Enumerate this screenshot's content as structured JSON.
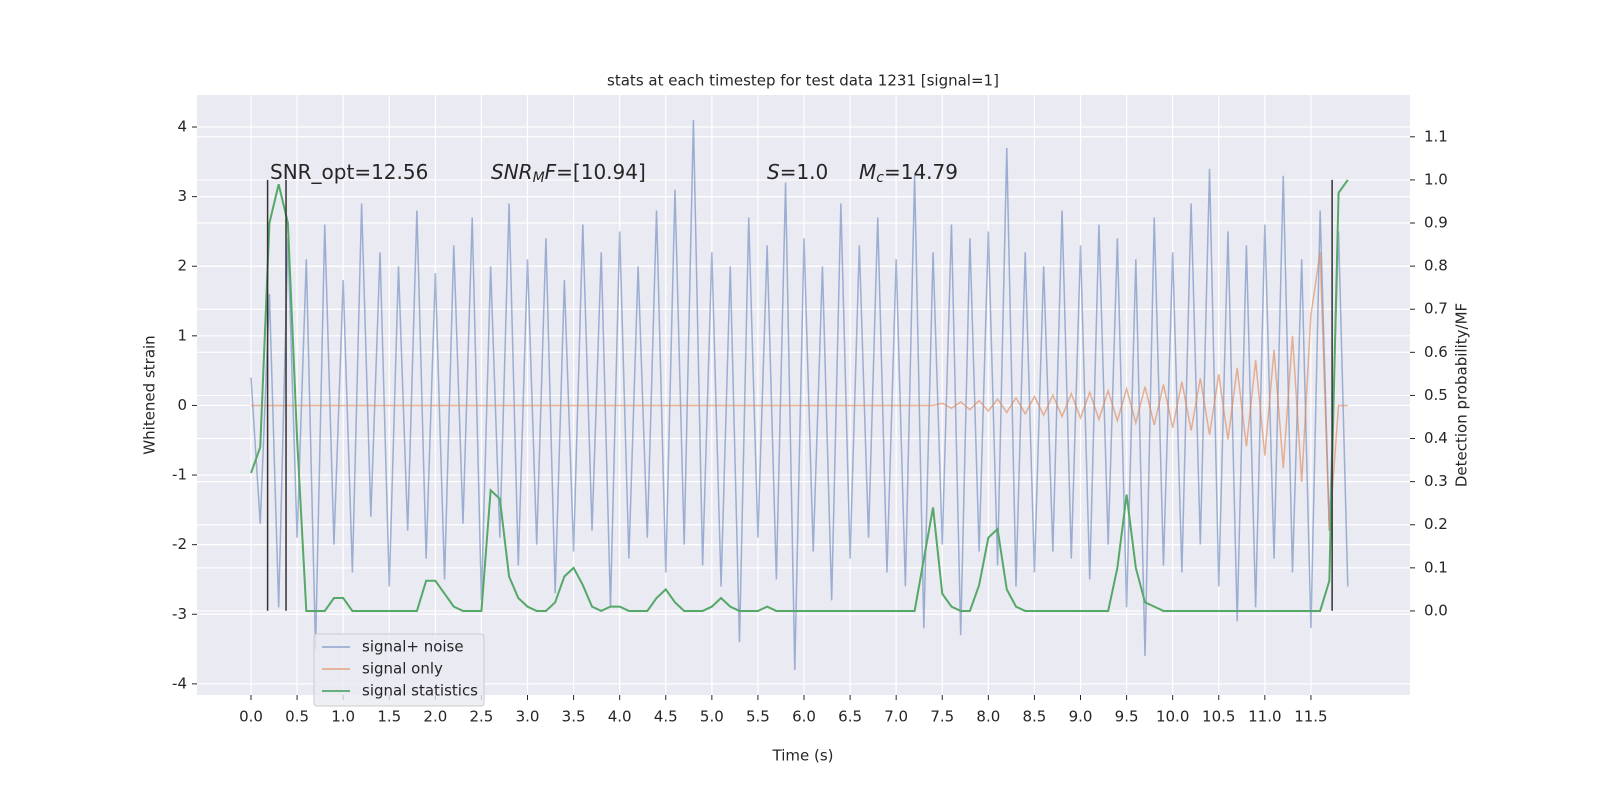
{
  "chart_data": {
    "type": "line",
    "title": "stats at each timestep for test data 1231 [signal=1]",
    "x_label": "Time (s)",
    "y_label": "Whitened strain",
    "y2_label": "Detection probability/MF",
    "x": [
      0,
      0.1,
      0.2,
      0.3,
      0.4,
      0.5,
      0.6,
      0.7,
      0.8,
      0.9,
      1,
      1.1,
      1.2,
      1.3,
      1.4,
      1.5,
      1.6,
      1.7,
      1.8,
      1.9,
      2,
      2.1,
      2.2,
      2.3,
      2.4,
      2.5,
      2.6,
      2.7,
      2.8,
      2.9,
      3,
      3.1,
      3.2,
      3.3,
      3.4,
      3.5,
      3.6,
      3.7,
      3.8,
      3.9,
      4,
      4.1,
      4.2,
      4.3,
      4.4,
      4.5,
      4.6,
      4.7,
      4.8,
      4.9,
      5,
      5.1,
      5.2,
      5.3,
      5.4,
      5.5,
      5.6,
      5.7,
      5.8,
      5.9,
      6,
      6.1,
      6.2,
      6.3,
      6.4,
      6.5,
      6.6,
      6.7,
      6.8,
      6.9,
      7,
      7.1,
      7.2,
      7.3,
      7.4,
      7.5,
      7.6,
      7.7,
      7.8,
      7.9,
      8,
      8.1,
      8.2,
      8.3,
      8.4,
      8.5,
      8.6,
      8.7,
      8.8,
      8.9,
      9,
      9.1,
      9.2,
      9.3,
      9.4,
      9.5,
      9.6,
      9.7,
      9.8,
      9.9,
      10,
      10.1,
      10.2,
      10.3,
      10.4,
      10.5,
      10.6,
      10.7,
      10.8,
      10.9,
      11,
      11.1,
      11.2,
      11.3,
      11.4,
      11.5,
      11.6,
      11.7,
      11.8,
      11.9
    ],
    "series": [
      {
        "name": "signal+ noise",
        "color": "#4c72b0",
        "alpha": 0.5,
        "values": [
          0.4,
          -1.7,
          1.6,
          -2.9,
          2.4,
          -1.9,
          2.1,
          -3.5,
          2.6,
          -2.0,
          1.8,
          -2.4,
          2.9,
          -1.6,
          2.2,
          -2.6,
          2.0,
          -1.8,
          2.8,
          -2.2,
          1.9,
          -2.5,
          2.3,
          -1.7,
          2.7,
          -2.8,
          2.0,
          -1.9,
          2.9,
          -2.3,
          2.1,
          -2.0,
          2.4,
          -2.7,
          1.8,
          -2.1,
          2.6,
          -1.8,
          2.2,
          -2.9,
          2.5,
          -2.2,
          2.0,
          -1.9,
          2.8,
          -2.4,
          3.1,
          -2.0,
          4.1,
          -2.3,
          2.2,
          -2.6,
          2.0,
          -3.4,
          2.7,
          -1.9,
          2.3,
          -2.5,
          3.2,
          -3.8,
          2.4,
          -2.1,
          2.0,
          -2.8,
          2.9,
          -2.2,
          2.3,
          -1.9,
          2.7,
          -2.4,
          2.1,
          -2.6,
          3.3,
          -3.2,
          2.2,
          -2.0,
          2.6,
          -3.3,
          2.4,
          -2.1,
          2.5,
          -2.3,
          3.7,
          -2.6,
          2.2,
          -2.4,
          2.0,
          -2.1,
          2.8,
          -2.2,
          2.3,
          -2.5,
          2.6,
          -2.0,
          2.4,
          -2.9,
          2.1,
          -3.6,
          2.7,
          -2.3,
          2.2,
          -2.4,
          2.9,
          -2.0,
          3.4,
          -2.6,
          2.5,
          -3.1,
          2.3,
          -2.9,
          2.6,
          -2.2,
          3.3,
          -2.4,
          2.1,
          -3.2,
          2.8,
          -1.8,
          2.5,
          -2.6
        ]
      },
      {
        "name": "signal only",
        "color": "#dd8452",
        "alpha": 0.6,
        "values": [
          0,
          0,
          0,
          0,
          0,
          0,
          0,
          0,
          0,
          0,
          0,
          0,
          0,
          0,
          0,
          0,
          0,
          0,
          0,
          0,
          0,
          0,
          0,
          0,
          0,
          0,
          0,
          0,
          0,
          0,
          0,
          0,
          0,
          0,
          0,
          0,
          0,
          0,
          0,
          0,
          0,
          0,
          0,
          0,
          0,
          0,
          0,
          0,
          0,
          0,
          0,
          0,
          0,
          0,
          0,
          0,
          0,
          0,
          0,
          0,
          0,
          0,
          0,
          0,
          0,
          0,
          0,
          0,
          0,
          0,
          0,
          0,
          0,
          0,
          0,
          0.03,
          -0.04,
          0.05,
          -0.06,
          0.07,
          -0.08,
          0.09,
          -0.1,
          0.11,
          -0.12,
          0.13,
          -0.14,
          0.15,
          -0.16,
          0.17,
          -0.18,
          0.19,
          -0.2,
          0.21,
          -0.22,
          0.24,
          -0.25,
          0.27,
          -0.28,
          0.3,
          -0.32,
          0.34,
          -0.36,
          0.39,
          -0.42,
          0.45,
          -0.49,
          0.54,
          -0.59,
          0.65,
          -0.72,
          0.8,
          -0.9,
          1.0,
          -1.1,
          1.3,
          2.2,
          -1.8,
          0,
          0
        ]
      },
      {
        "name": "signal statistics",
        "color": "#55a868",
        "alpha": 1,
        "axis": "y2",
        "values": [
          0.32,
          0.38,
          0.9,
          0.99,
          0.9,
          0.4,
          0,
          0,
          0,
          0.03,
          0.03,
          0,
          0,
          0,
          0,
          0,
          0,
          0,
          0,
          0.07,
          0.07,
          0.04,
          0.01,
          0,
          0,
          0,
          0.28,
          0.26,
          0.08,
          0.03,
          0.01,
          0,
          0,
          0.02,
          0.08,
          0.1,
          0.06,
          0.01,
          0,
          0.01,
          0.01,
          0,
          0,
          0,
          0.03,
          0.05,
          0.02,
          0,
          0,
          0,
          0.01,
          0.03,
          0.01,
          0,
          0,
          0,
          0.01,
          0,
          0,
          0,
          0,
          0,
          0,
          0,
          0,
          0,
          0,
          0,
          0,
          0,
          0,
          0,
          0,
          0.12,
          0.24,
          0.04,
          0.01,
          0,
          0,
          0.06,
          0.17,
          0.19,
          0.05,
          0.01,
          0,
          0,
          0,
          0,
          0,
          0,
          0,
          0,
          0,
          0,
          0.1,
          0.27,
          0.1,
          0.02,
          0.01,
          0,
          0,
          0,
          0,
          0,
          0,
          0,
          0,
          0,
          0,
          0,
          0,
          0,
          0,
          0,
          0,
          0,
          0,
          0.07,
          0.97,
          1.0
        ]
      }
    ],
    "vlines": [
      0.18,
      0.38,
      11.73
    ],
    "vline_range": [
      -2.95,
      3.24
    ],
    "vline_color": "#333333",
    "annotations": [
      [
        {
          "text": "SNR_opt=12.56"
        }
      ],
      [
        {
          "text": "SNR",
          "italic": true
        },
        {
          "text": "M",
          "italic": true,
          "sub": true
        },
        {
          "text": "F",
          "italic": true
        },
        {
          "text": "=[10.94]"
        }
      ],
      [
        {
          "text": "S",
          "italic": true
        },
        {
          "text": "=1.0"
        }
      ],
      [
        {
          "text": "M",
          "italic": true
        },
        {
          "text": "c",
          "italic": true,
          "sub": true
        },
        {
          "text": "=14.79"
        }
      ]
    ],
    "xlim": [
      -0.586,
      12.575
    ],
    "ylim": [
      -4.16,
      4.46
    ],
    "y2lim": [
      -0.195,
      1.197
    ],
    "xticks": [
      {
        "value": 0,
        "label": "0.0"
      },
      0.5,
      {
        "value": 1,
        "label": "1.0"
      },
      1.5,
      {
        "value": 2,
        "label": "2.0"
      },
      2.5,
      {
        "value": 3,
        "label": "3.0"
      },
      3.5,
      {
        "value": 4,
        "label": "4.0"
      },
      4.5,
      {
        "value": 5,
        "label": "5.0"
      },
      5.5,
      {
        "value": 6,
        "label": "6.0"
      },
      6.5,
      {
        "value": 7,
        "label": "7.0"
      },
      7.5,
      {
        "value": 8,
        "label": "8.0"
      },
      8.5,
      {
        "value": 9,
        "label": "9.0"
      },
      9.5,
      {
        "value": 10,
        "label": "10.0"
      },
      10.5,
      {
        "value": 11,
        "label": "11.0"
      },
      11.5
    ],
    "yticks": [
      -4,
      -3,
      -2,
      -1,
      0,
      1,
      2,
      3,
      4
    ],
    "y2ticks": [
      {
        "value": 0,
        "label": "0.0"
      },
      0.1,
      0.2,
      0.3,
      0.4,
      0.5,
      0.6,
      0.7,
      0.8,
      0.9,
      {
        "value": 1,
        "label": "1.0"
      },
      1.1
    ],
    "grid": true,
    "legend": "lower left"
  }
}
